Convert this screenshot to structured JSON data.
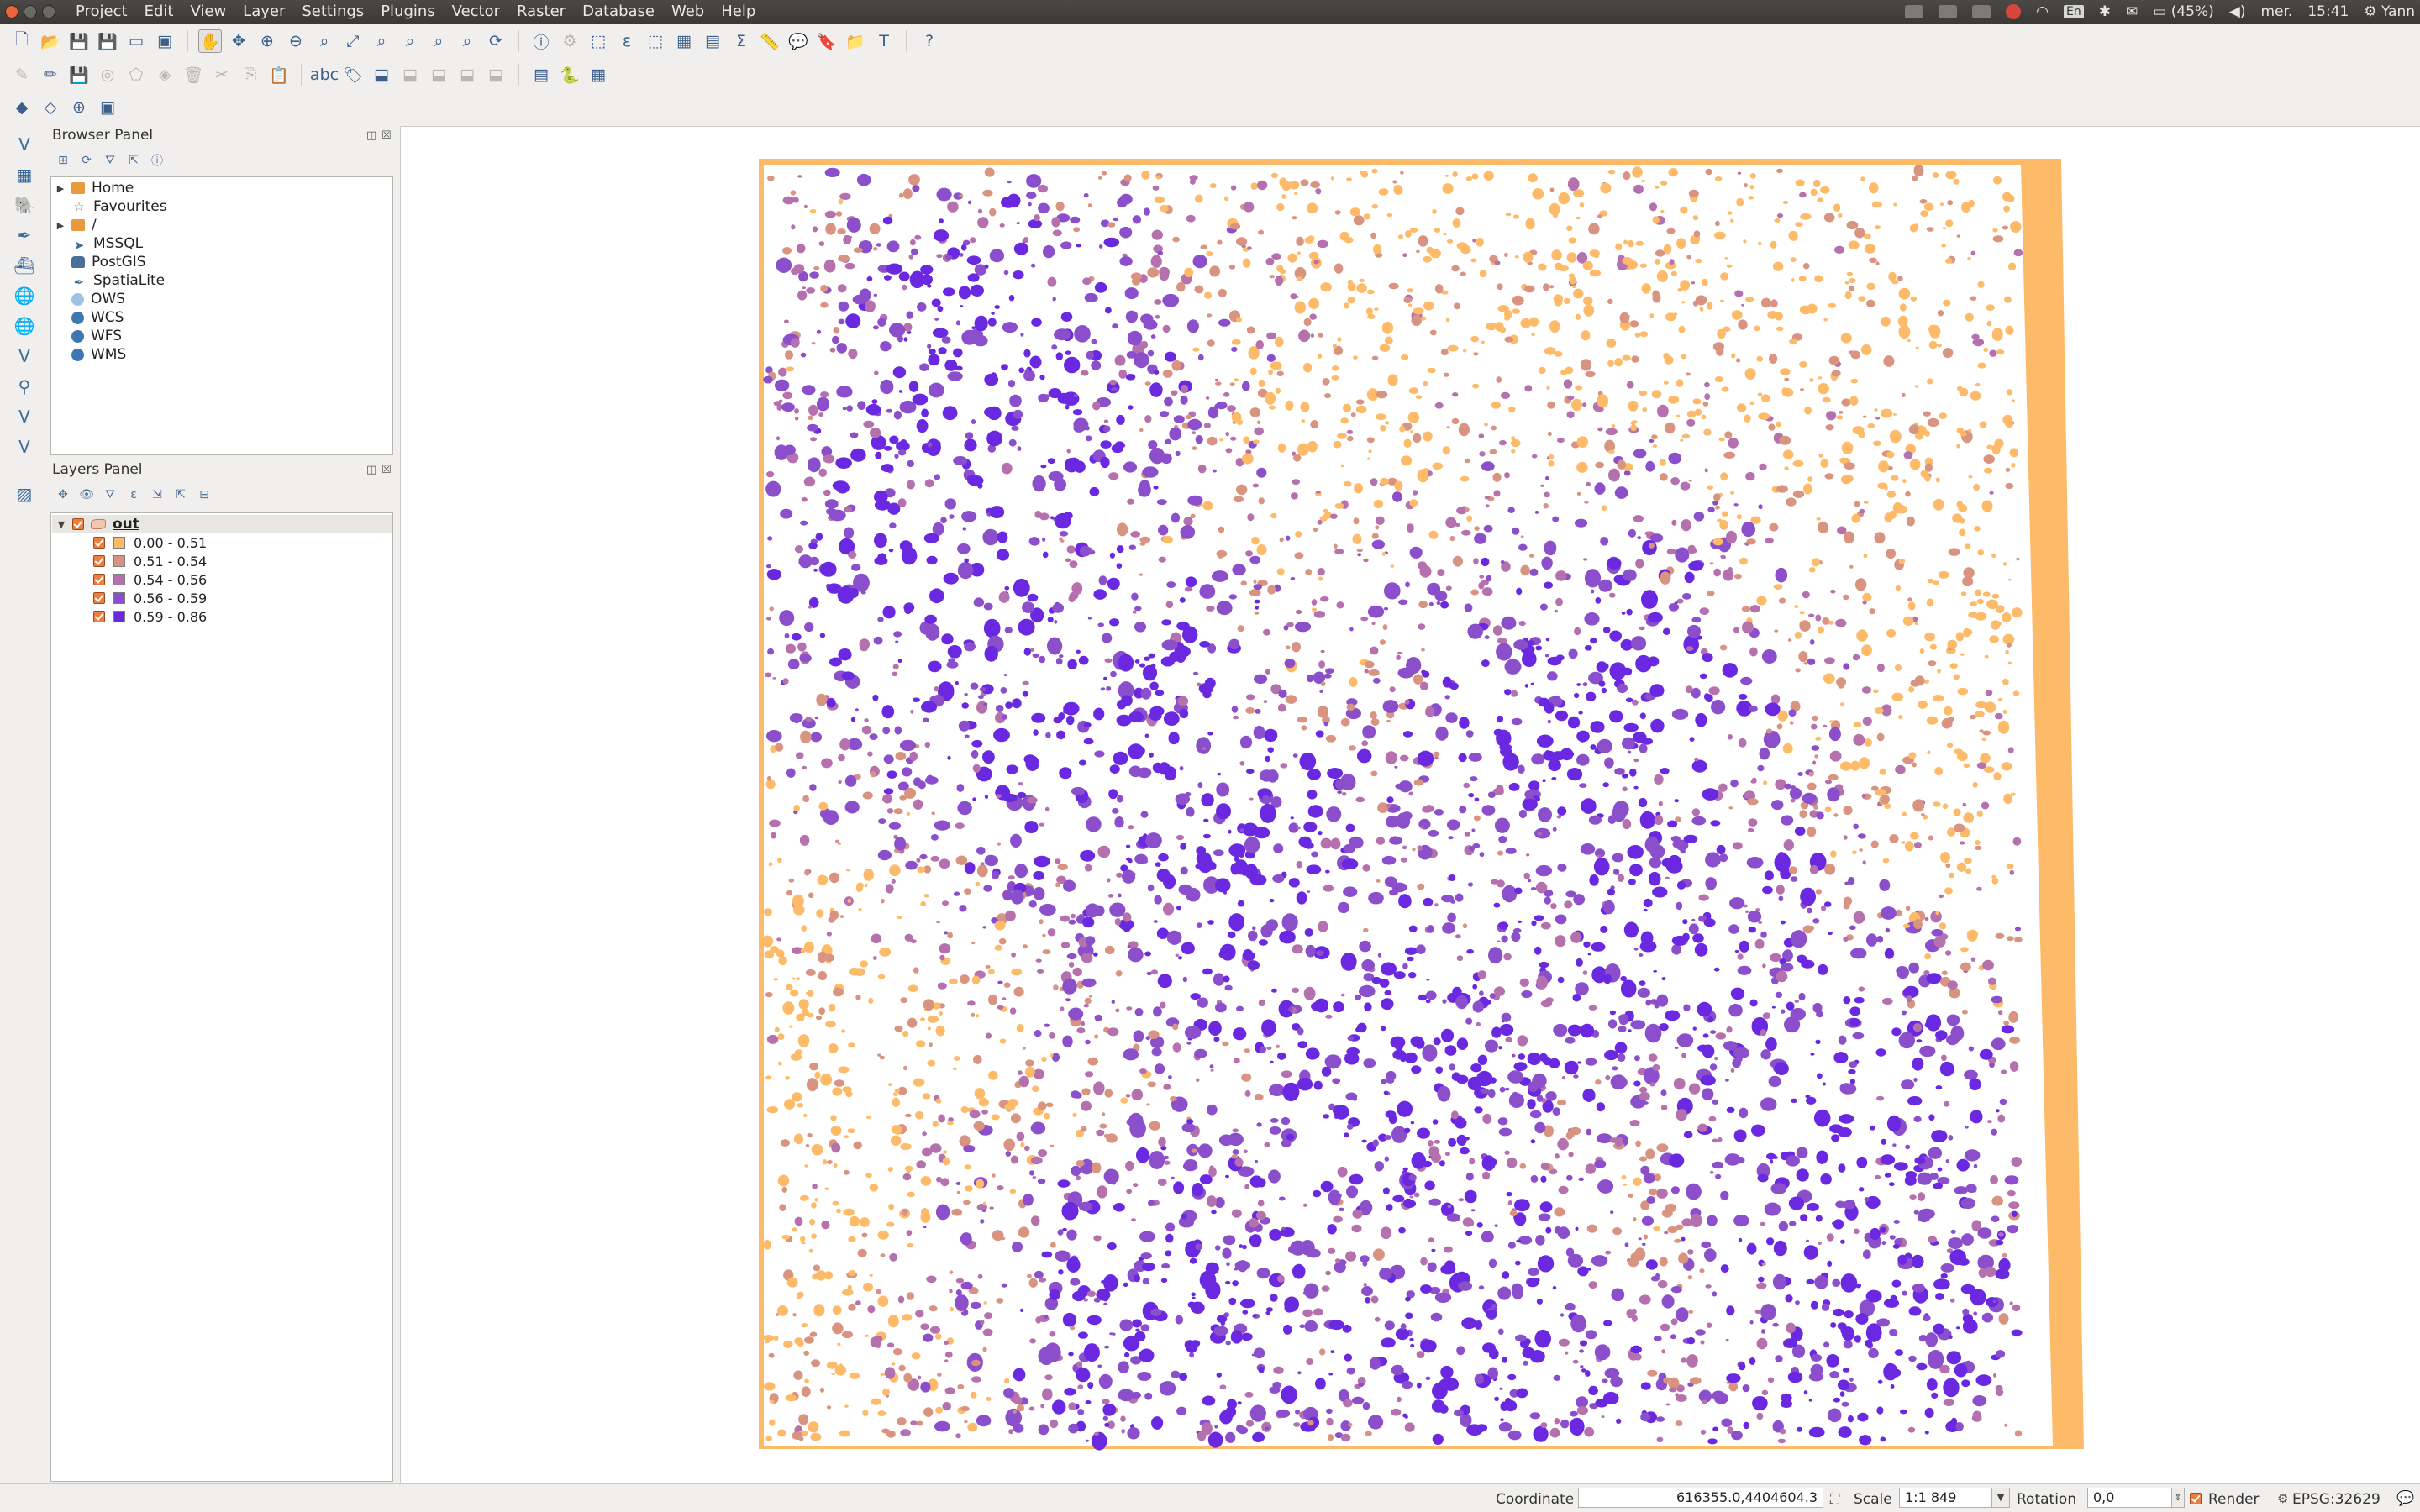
{
  "menu": [
    "Project",
    "Edit",
    "View",
    "Layer",
    "Settings",
    "Plugins",
    "Vector",
    "Raster",
    "Database",
    "Web",
    "Help"
  ],
  "tray": {
    "keyboard": "En",
    "battery": "(45%)",
    "day": "mer.",
    "time": "15:41",
    "user": "Yann"
  },
  "browser_panel": {
    "title": "Browser Panel",
    "items": [
      {
        "label": "Home",
        "icon": "folder-icon",
        "expandable": true
      },
      {
        "label": "Favourites",
        "icon": "star-icon",
        "expandable": false
      },
      {
        "label": "/",
        "icon": "folder-icon",
        "expandable": true
      },
      {
        "label": "MSSQL",
        "icon": "mssql-icon",
        "expandable": false
      },
      {
        "label": "PostGIS",
        "icon": "postgis-icon",
        "expandable": false
      },
      {
        "label": "SpatiaLite",
        "icon": "spatialite-icon",
        "expandable": false
      },
      {
        "label": "OWS",
        "icon": "ows-icon",
        "expandable": false
      },
      {
        "label": "WCS",
        "icon": "wcs-icon",
        "expandable": false
      },
      {
        "label": "WFS",
        "icon": "wfs-icon",
        "expandable": false
      },
      {
        "label": "WMS",
        "icon": "wms-icon",
        "expandable": false
      }
    ]
  },
  "layers_panel": {
    "title": "Layers Panel",
    "layer_name": "out",
    "classes": [
      {
        "label": "0.00 - 0.51",
        "color": "#fdbb69"
      },
      {
        "label": "0.51 - 0.54",
        "color": "#d99481"
      },
      {
        "label": "0.54 - 0.56",
        "color": "#b571ad"
      },
      {
        "label": "0.56 - 0.59",
        "color": "#8c4fcc"
      },
      {
        "label": "0.59 - 0.86",
        "color": "#6a28e0"
      }
    ]
  },
  "statusbar": {
    "coordinate_label": "Coordinate",
    "coordinate_value": "616355.0,4404604.3",
    "scale_label": "Scale",
    "scale_value": "1:1 849",
    "rotation_label": "Rotation",
    "rotation_value": "0,0",
    "render_label": "Render",
    "crs": "EPSG:32629"
  }
}
